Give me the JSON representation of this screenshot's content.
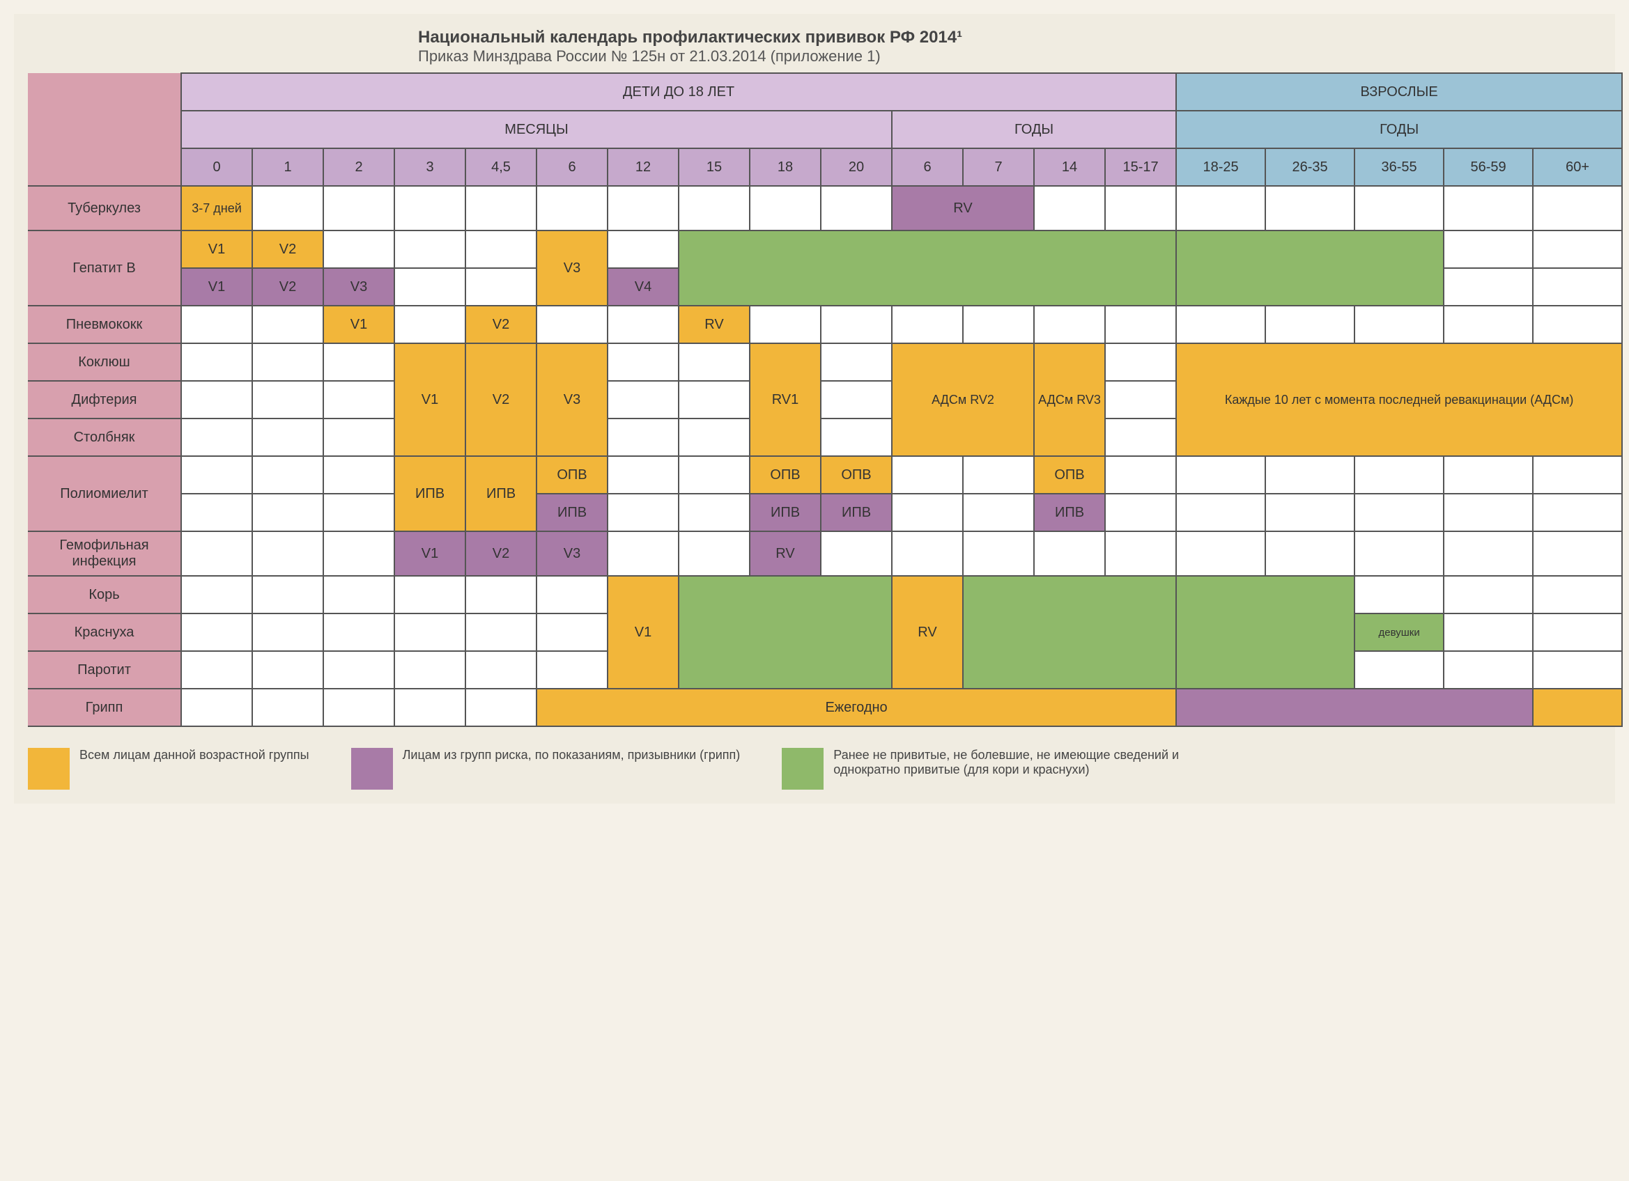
{
  "colors": {
    "pink": "#d8a0ae",
    "lilac_light": "#d8c0dd",
    "lilac_mid": "#c6a9cc",
    "blue": "#9cc3d6",
    "orange": "#f2b63a",
    "purple": "#a87ba7",
    "green": "#8fb96a",
    "white": "#ffffff"
  },
  "title": "Национальный календарь профилактических прививок РФ 2014¹",
  "subtitle": "Приказ Минздрава России № 125н от 21.03.2014 (приложение 1)",
  "header": {
    "children": "ДЕТИ ДО 18 ЛЕТ",
    "adults": "ВЗРОСЛЫЕ",
    "months": "МЕСЯЦЫ",
    "years": "ГОДЫ",
    "cols_months": [
      "0",
      "1",
      "2",
      "3",
      "4,5",
      "6",
      "12",
      "15",
      "18",
      "20"
    ],
    "cols_years_child": [
      "6",
      "7",
      "14",
      "15-17"
    ],
    "cols_years_adult": [
      "18-25",
      "26-35",
      "36-55",
      "56-59",
      "60+"
    ]
  },
  "rows": {
    "tb": "Туберкулез",
    "hepb": "Гепатит В",
    "pneumo": "Пневмококк",
    "pertussis": "Коклюш",
    "diphtheria": "Дифтерия",
    "tetanus": "Столбняк",
    "polio": "Полиомиелит",
    "hib": "Гемофильная инфекция",
    "measles": "Корь",
    "rubella": "Краснуха",
    "mumps": "Паротит",
    "flu": "Грипп"
  },
  "cells": {
    "days37": "3-7 дней",
    "rv": "RV",
    "v1": "V1",
    "v2": "V2",
    "v3": "V3",
    "v4": "V4",
    "rv1": "RV1",
    "adsm_rv2": "АДСм RV2",
    "adsm_rv3": "АДСм RV3",
    "adsm_every10": "Каждые 10 лет с момента последней ревакцинации (АДСм)",
    "opv": "ОПВ",
    "ipv": "ИПВ",
    "annually": "Ежегодно",
    "girls": "девушки"
  },
  "legend": {
    "all": "Всем лицам данной возрастной группы",
    "risk": "Лицам из групп риска, по показаниям, призывники (грипп)",
    "catchup": "Ранее не привитые, не болевшие, не имеющие сведений и однократно привитые (для кори и краснухи)"
  },
  "layout": {
    "col_label_w": 220,
    "col_cell_w": 102,
    "col_adult_w": 128
  }
}
